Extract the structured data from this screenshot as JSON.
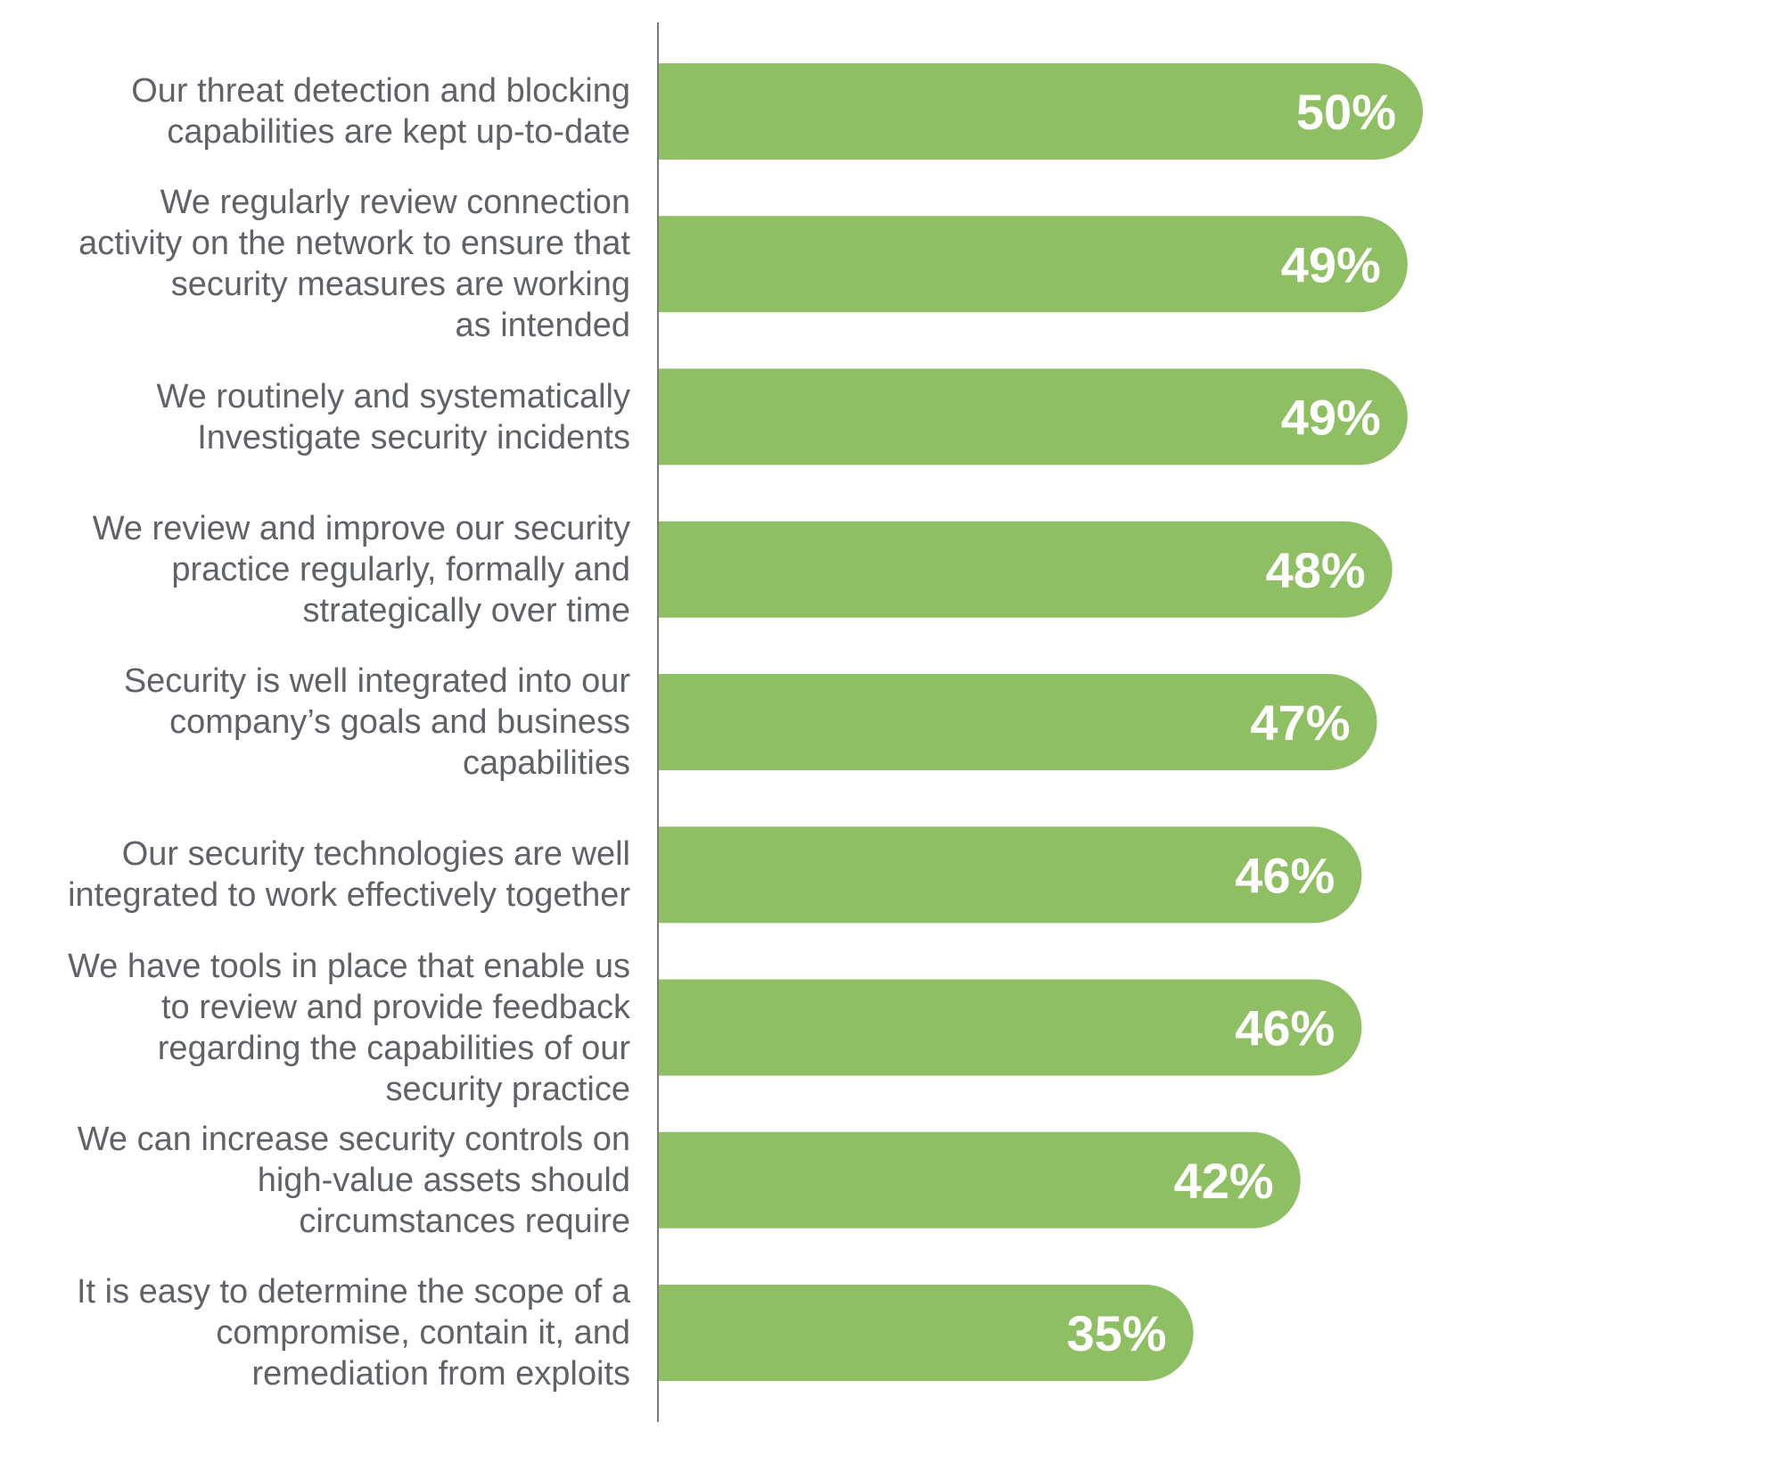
{
  "chart_data": {
    "type": "bar",
    "orientation": "horizontal",
    "title": "",
    "xlabel": "",
    "ylabel": "",
    "xlim": [
      0,
      100
    ],
    "grid": false,
    "legend": "none",
    "colors": {
      "bar": "#8fbf63",
      "value_label": "#ffffff",
      "category_label": "#5f6266",
      "axis": "#7a7a7a"
    },
    "categories": [
      [
        "Our threat detection and blocking",
        "capabilities are kept up-to-date"
      ],
      [
        "We regularly review connection",
        "activity on the network to ensure that",
        "security measures are working",
        "as intended"
      ],
      [
        "We routinely and systematically",
        "Investigate security incidents"
      ],
      [
        "We review and improve our security",
        "practice regularly,  formally and",
        "strategically over time"
      ],
      [
        "Security is well integrated into our",
        "company’s  goals and business",
        "capabilities"
      ],
      [
        "Our security technologies are well",
        "integrated to work effectively together"
      ],
      [
        "We have tools in place that enable us",
        "to review and provide feedback",
        "regarding the capabilities of our",
        "security practice"
      ],
      [
        "We can increase security controls on",
        "high-value assets should",
        "circumstances require"
      ],
      [
        "It is easy to determine the scope of a",
        "compromise, contain it, and",
        "remediation from exploits"
      ]
    ],
    "values": [
      50,
      49,
      49,
      48,
      47,
      46,
      46,
      42,
      35
    ],
    "value_labels": [
      "50%",
      "49%",
      "49%",
      "48%",
      "47%",
      "46%",
      "46%",
      "42%",
      "35%"
    ]
  }
}
